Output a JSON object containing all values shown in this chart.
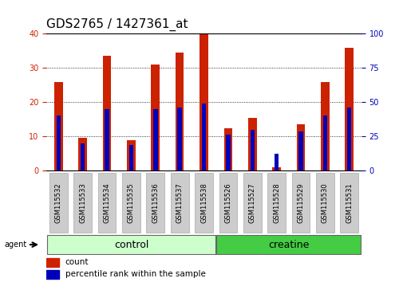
{
  "title": "GDS2765 / 1427361_at",
  "samples": [
    "GSM115532",
    "GSM115533",
    "GSM115534",
    "GSM115535",
    "GSM115536",
    "GSM115537",
    "GSM115538",
    "GSM115526",
    "GSM115527",
    "GSM115528",
    "GSM115529",
    "GSM115530",
    "GSM115531"
  ],
  "count_values": [
    26,
    9.5,
    33.5,
    9,
    31,
    34.5,
    40,
    12.5,
    15.5,
    1,
    13.5,
    26,
    36
  ],
  "percentile_values": [
    16,
    8,
    18,
    7.5,
    18,
    18.5,
    19.5,
    10.5,
    12,
    5,
    11.5,
    16,
    18.5
  ],
  "n_control": 7,
  "n_creatine": 6,
  "ylim_left": [
    0,
    40
  ],
  "ylim_right": [
    0,
    100
  ],
  "yticks_left": [
    0,
    10,
    20,
    30,
    40
  ],
  "yticks_right": [
    0,
    25,
    50,
    75,
    100
  ],
  "bar_width": 0.35,
  "blue_bar_width": 0.18,
  "red_color": "#cc2200",
  "blue_color": "#0000bb",
  "control_bg": "#ccffcc",
  "creatine_bg": "#44cc44",
  "tick_bg": "#cccccc",
  "agent_label": "agent",
  "control_label": "control",
  "creatine_label": "creatine",
  "legend_count": "count",
  "legend_pct": "percentile rank within the sample",
  "left_tick_color": "#cc2200",
  "right_tick_color": "#0000bb",
  "title_fontsize": 11,
  "tick_fontsize": 7,
  "label_fontsize": 9,
  "sample_fontsize": 6
}
